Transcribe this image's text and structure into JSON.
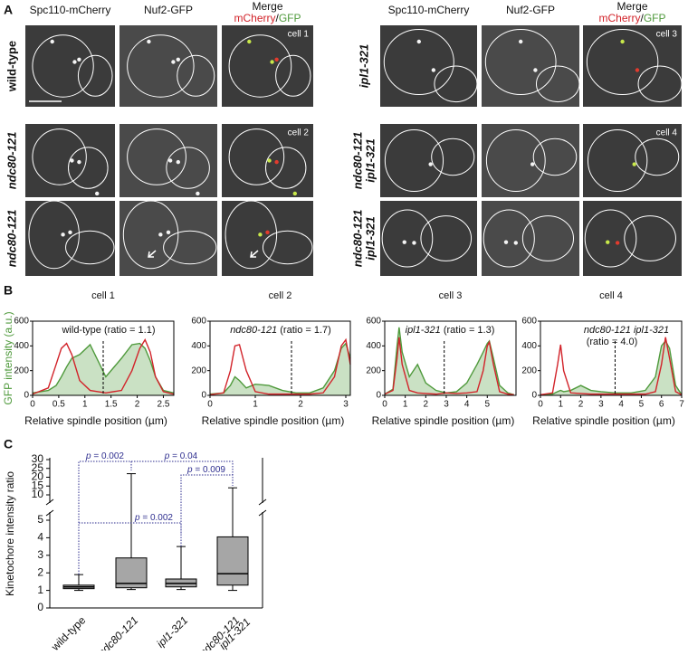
{
  "panel_labels": [
    "A",
    "B",
    "C"
  ],
  "panel_a": {
    "groups": [
      {
        "headers": [
          "Spc110-mCherry",
          "Nuf2-GFP"
        ],
        "merge": [
          "Merge",
          "mCherry",
          "/",
          "GFP"
        ],
        "rows": [
          [
            "wild-type"
          ],
          [
            "ndc80-121"
          ],
          [
            "ndc80-121"
          ]
        ],
        "row_italic": [
          false,
          true,
          true
        ],
        "cells": [
          "cell 1",
          "cell 2"
        ]
      },
      {
        "headers": [
          "Spc110-mCherry",
          "Nuf2-GFP"
        ],
        "merge": [
          "Merge",
          "mCherry",
          "/",
          "GFP"
        ],
        "rows": [
          [
            "ipl1-321"
          ],
          [
            "ndc80-121",
            "ipl1-321"
          ],
          [
            "ndc80-121",
            "ipl1-321"
          ]
        ],
        "row_italic": [
          true,
          true,
          true
        ],
        "cells": [
          "cell 3",
          "cell 4"
        ]
      }
    ]
  },
  "chart_data": [
    {
      "type": "line",
      "title": "cell 1",
      "ylabel": "GFP intensity (a.u.)",
      "xlabel": "Relative spindle position (µm)",
      "annotation": [
        [
          {
            "text": "wild-type (ratio = 1.1)",
            "italic": false
          }
        ]
      ],
      "xlim": [
        0,
        2.7
      ],
      "xticks": [
        0,
        0.5,
        1,
        1.5,
        2,
        2.5
      ],
      "ylim": [
        0,
        600
      ],
      "yticks": [
        0,
        200,
        400,
        600
      ],
      "vline": 1.35,
      "x": [
        0,
        0.3,
        0.45,
        0.55,
        0.65,
        0.75,
        0.9,
        1.1,
        1.4,
        1.7,
        1.9,
        2.05,
        2.15,
        2.25,
        2.35,
        2.5,
        2.7
      ],
      "series": [
        {
          "color": "#d2232a",
          "fill": false,
          "values": [
            10,
            60,
            250,
            380,
            420,
            330,
            120,
            40,
            20,
            40,
            200,
            380,
            450,
            350,
            150,
            30,
            10
          ]
        },
        {
          "color": "#4f9a3c",
          "fill": true,
          "values": [
            20,
            40,
            80,
            150,
            230,
            300,
            330,
            410,
            150,
            300,
            410,
            420,
            380,
            280,
            150,
            40,
            20
          ]
        }
      ]
    },
    {
      "type": "line",
      "title": "cell 2",
      "xlabel": "Relative spindle position (µm)",
      "annotation": [
        [
          {
            "text": "ndc80-121",
            "italic": true
          },
          {
            "text": " (ratio = 1.7)",
            "italic": false
          }
        ]
      ],
      "xlim": [
        0,
        3.1
      ],
      "xticks": [
        0,
        1,
        2,
        3
      ],
      "ylim": [
        0,
        600
      ],
      "yticks": [
        0,
        200,
        400,
        600
      ],
      "vline": 1.8,
      "x": [
        0,
        0.3,
        0.45,
        0.55,
        0.65,
        0.8,
        1,
        1.3,
        1.6,
        1.9,
        2.2,
        2.5,
        2.75,
        2.9,
        3,
        3.1
      ],
      "series": [
        {
          "color": "#d2232a",
          "fill": false,
          "values": [
            5,
            20,
            200,
            400,
            410,
            200,
            30,
            10,
            10,
            10,
            10,
            20,
            150,
            400,
            450,
            250
          ]
        },
        {
          "color": "#4f9a3c",
          "fill": true,
          "values": [
            10,
            20,
            80,
            150,
            120,
            60,
            90,
            80,
            40,
            20,
            20,
            60,
            200,
            380,
            420,
            300
          ]
        }
      ]
    },
    {
      "type": "line",
      "title": "cell 3",
      "xlabel": "Relative spindle position (µm)",
      "annotation": [
        [
          {
            "text": "ipl1-321",
            "italic": true
          },
          {
            "text": " (ratio = 1.3)",
            "italic": false
          }
        ]
      ],
      "xlim": [
        0,
        6.4
      ],
      "xticks": [
        0,
        1,
        2,
        3,
        4,
        5
      ],
      "ylim": [
        0,
        600
      ],
      "yticks": [
        0,
        200,
        400,
        600
      ],
      "vline": 2.9,
      "x": [
        0,
        0.4,
        0.6,
        0.7,
        0.85,
        1.2,
        1.6,
        2,
        2.5,
        3,
        3.5,
        4,
        4.5,
        4.8,
        5,
        5.1,
        5.3,
        5.6,
        6,
        6.3
      ],
      "series": [
        {
          "color": "#d2232a",
          "fill": false,
          "values": [
            10,
            40,
            300,
            470,
            250,
            40,
            20,
            15,
            10,
            20,
            15,
            20,
            30,
            200,
            400,
            430,
            250,
            30,
            10,
            5
          ]
        },
        {
          "color": "#4f9a3c",
          "fill": true,
          "values": [
            10,
            50,
            400,
            550,
            350,
            150,
            250,
            100,
            40,
            20,
            30,
            100,
            250,
            350,
            420,
            440,
            300,
            80,
            20,
            5
          ]
        }
      ]
    },
    {
      "type": "line",
      "title": "cell 4",
      "xlabel": "Relative spindle position (µm)",
      "annotation": [
        [
          {
            "text": "ndc80-121 ipl1-321",
            "italic": true
          }
        ],
        [
          {
            "text": "(ratio = 4.0)",
            "italic": false
          }
        ]
      ],
      "xlim": [
        0,
        7
      ],
      "xticks": [
        0,
        1,
        2,
        3,
        4,
        5,
        6,
        7
      ],
      "ylim": [
        0,
        600
      ],
      "yticks": [
        0,
        200,
        400,
        600
      ],
      "vline": 3.7,
      "x": [
        0,
        0.6,
        0.85,
        1,
        1.15,
        1.5,
        2,
        2.5,
        3,
        3.7,
        4.5,
        5.2,
        5.7,
        6,
        6.2,
        6.4,
        6.7,
        7
      ],
      "series": [
        {
          "color": "#d2232a",
          "fill": false,
          "values": [
            5,
            20,
            250,
            410,
            200,
            20,
            15,
            10,
            10,
            10,
            10,
            10,
            30,
            250,
            470,
            300,
            30,
            5
          ]
        },
        {
          "color": "#4f9a3c",
          "fill": true,
          "values": [
            5,
            10,
            30,
            40,
            30,
            40,
            80,
            40,
            30,
            20,
            20,
            40,
            150,
            400,
            440,
            380,
            80,
            5
          ]
        }
      ]
    },
    {
      "type": "box",
      "ylabel": "Kinetochore intensity ratio",
      "color": "#a6a6a6",
      "categories": [
        [
          "wild-type"
        ],
        [
          "ndc80-121"
        ],
        [
          "ipl1-321"
        ],
        [
          "ndc80-121",
          "ipl1-321"
        ]
      ],
      "category_italic": [
        false,
        true,
        true,
        true
      ],
      "ylim": [
        0,
        5
      ],
      "yticks": [
        0,
        1,
        2,
        3,
        4,
        5
      ],
      "ylim_upper": [
        10,
        30
      ],
      "yticks_upper": [
        10,
        15,
        20,
        25,
        30
      ],
      "boxes": [
        {
          "whislo": 1.0,
          "q1": 1.1,
          "med": 1.2,
          "q3": 1.3,
          "whishi": 1.9
        },
        {
          "whislo": 1.05,
          "q1": 1.15,
          "med": 1.4,
          "q3": 2.85,
          "whishi": 22
        },
        {
          "whislo": 1.05,
          "q1": 1.2,
          "med": 1.4,
          "q3": 1.65,
          "whishi": 3.5
        },
        {
          "whislo": 1.0,
          "q1": 1.3,
          "med": 1.95,
          "q3": 4.05,
          "whishi": 14
        }
      ],
      "p_values": [
        [
          {
            "text": "p",
            "italic": true
          },
          {
            "text": " = 0.002",
            "italic": false
          }
        ],
        [
          {
            "text": "p",
            "italic": true
          },
          {
            "text": " = 0.04",
            "italic": false
          }
        ],
        [
          {
            "text": "p",
            "italic": true
          },
          {
            "text": " = 0.009",
            "italic": false
          }
        ],
        [
          {
            "text": "p",
            "italic": true
          },
          {
            "text": " = 0.002",
            "italic": false
          }
        ]
      ]
    }
  ]
}
